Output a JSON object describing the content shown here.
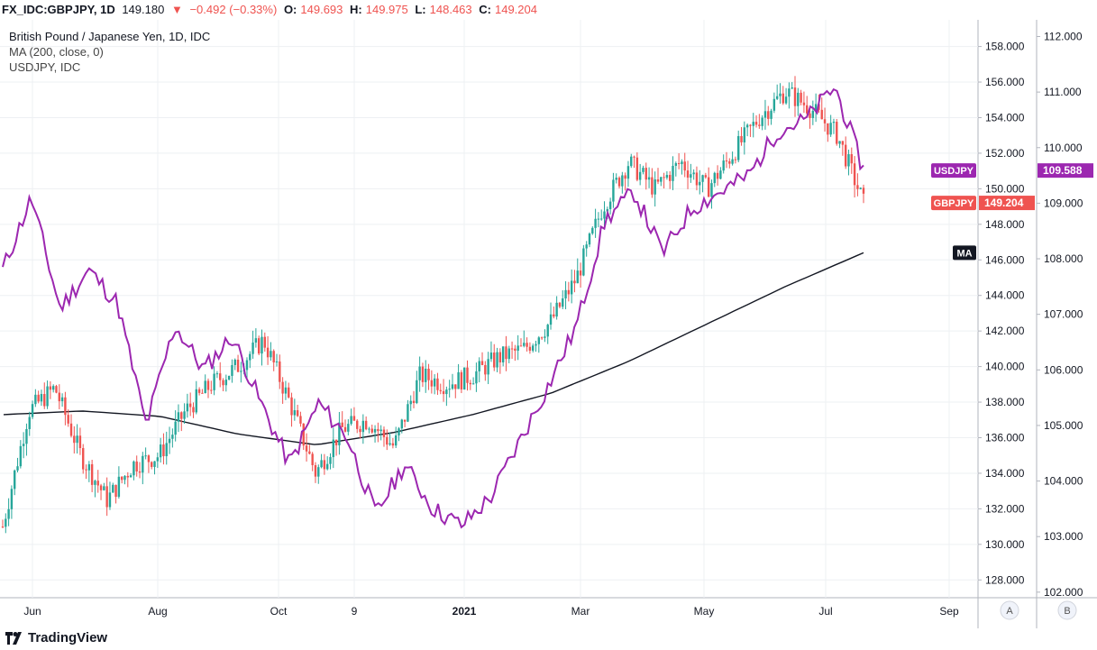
{
  "header": {
    "symbol": "FX_IDC:GBPJPY, 1D",
    "last": "149.180",
    "change_arrow": "▼",
    "change": "−0.492 (−0.33%)",
    "o_label": "O:",
    "o_value": "149.693",
    "h_label": "H:",
    "h_value": "149.975",
    "l_label": "L:",
    "l_value": "148.463",
    "c_label": "C:",
    "c_value": "149.204"
  },
  "legend": {
    "main": "British Pound / Japanese Yen, 1D, IDC",
    "ma": "MA (200, close, 0)",
    "overlay": "USDJPY, IDC"
  },
  "footer": {
    "brand": "TradingView"
  },
  "scale_buttons": {
    "a": "A",
    "b": "B"
  },
  "colors": {
    "up": "#26a69a",
    "down": "#ef5350",
    "usdjpy": "#9c27b0",
    "ma": "#131722",
    "grid": "#eef0f3"
  },
  "chart_data": {
    "type": "line",
    "x_tick_labels": [
      "Jun",
      "Aug",
      "Oct",
      "9",
      "2021",
      "Mar",
      "May",
      "Jul",
      "Sep"
    ],
    "left_axis": null,
    "right_axis_gbpjpy": {
      "ticks": [
        "158.000",
        "156.000",
        "154.000",
        "152.000",
        "150.000",
        "148.000",
        "146.000",
        "144.000",
        "142.000",
        "140.000",
        "138.000",
        "136.000",
        "134.000",
        "132.000",
        "130.000",
        "128.000"
      ],
      "ylim": [
        127,
        159.5
      ]
    },
    "right_axis_usdjpy": {
      "ticks": [
        "112.000",
        "111.000",
        "110.000",
        "109.000",
        "108.000",
        "107.000",
        "106.000",
        "105.000",
        "104.000",
        "103.000",
        "102.000"
      ],
      "ylim": [
        101.9,
        112.3
      ]
    },
    "series": [
      {
        "name": "GBPJPY",
        "kind": "candlestick-close",
        "points": [
          [
            "Jun 2020",
            131.0
          ],
          [
            "Jun 2020",
            137.5
          ],
          [
            "Jun 2020",
            138.8
          ],
          [
            "Jun 2020",
            135.0
          ],
          [
            "Jul 2020",
            132.5
          ],
          [
            "Jul 2020",
            134.5
          ],
          [
            "Jul 2020",
            135.0
          ],
          [
            "Jul 2020",
            137.5
          ],
          [
            "Aug 2020",
            139.0
          ],
          [
            "Aug 2020",
            140.0
          ],
          [
            "Aug 2020",
            141.5
          ],
          [
            "Sep 2020",
            138.0
          ],
          [
            "Sep 2020",
            134.0
          ],
          [
            "Sep 2020",
            136.5
          ],
          [
            "Oct 2020",
            137.0
          ],
          [
            "Oct 2020",
            135.5
          ],
          [
            "Nov 2020",
            139.5
          ],
          [
            "Nov 2020",
            139.0
          ],
          [
            "Dec 2020",
            139.5
          ],
          [
            "Dec 2020",
            140.5
          ],
          [
            "Jan 2021",
            141.0
          ],
          [
            "Jan 2021",
            142.5
          ],
          [
            "Feb 2021",
            145.0
          ],
          [
            "Feb 2021",
            149.0
          ],
          [
            "Mar 2021",
            151.5
          ],
          [
            "Mar 2021",
            150.0
          ],
          [
            "Apr 2021",
            151.5
          ],
          [
            "Apr 2021",
            150.0
          ],
          [
            "May 2021",
            152.0
          ],
          [
            "May 2021",
            154.0
          ],
          [
            "Jun 2021",
            155.5
          ],
          [
            "Jun 2021",
            154.5
          ],
          [
            "Jul 2021",
            153.0
          ],
          [
            "Jul 2021",
            149.2
          ]
        ]
      },
      {
        "name": "USDJPY",
        "points": [
          [
            "Jun 2020",
            107.8
          ],
          [
            "Jun 2020",
            109.1
          ],
          [
            "Jun 2020",
            107.1
          ],
          [
            "Jul 2020",
            107.8
          ],
          [
            "Jul 2020",
            107.2
          ],
          [
            "Jul 2020",
            105.0
          ],
          [
            "Aug 2020",
            106.8
          ],
          [
            "Aug 2020",
            106.0
          ],
          [
            "Aug 2020",
            106.6
          ],
          [
            "Sep 2020",
            105.4
          ],
          [
            "Sep 2020",
            104.3
          ],
          [
            "Oct 2020",
            105.4
          ],
          [
            "Oct 2020",
            104.8
          ],
          [
            "Nov 2020",
            103.4
          ],
          [
            "Nov 2020",
            104.3
          ],
          [
            "Dec 2020",
            103.5
          ],
          [
            "Dec 2020",
            103.2
          ],
          [
            "Jan 2021",
            103.7
          ],
          [
            "Jan 2021",
            104.7
          ],
          [
            "Feb 2021",
            105.7
          ],
          [
            "Feb 2021",
            106.8
          ],
          [
            "Mar 2021",
            108.7
          ],
          [
            "Mar 2021",
            109.2
          ],
          [
            "Apr 2021",
            108.1
          ],
          [
            "Apr 2021",
            108.9
          ],
          [
            "May 2021",
            109.2
          ],
          [
            "May 2021",
            109.5
          ],
          [
            "Jun 2021",
            110.3
          ],
          [
            "Jun 2021",
            110.5
          ],
          [
            "Jul 2021",
            111.1
          ],
          [
            "Jul 2021",
            109.6
          ]
        ]
      },
      {
        "name": "MA",
        "points": [
          [
            "Jun 2020",
            137.3
          ],
          [
            "Aug 2020",
            137.5
          ],
          [
            "Sep 2020",
            137.2
          ],
          [
            "Oct 2020",
            136.2
          ],
          [
            "Nov 2020",
            135.6
          ],
          [
            "Dec 2020",
            136.3
          ],
          [
            "Jan 2021",
            137.3
          ],
          [
            "Feb 2021",
            138.5
          ],
          [
            "Mar 2021",
            140.3
          ],
          [
            "Apr 2021",
            142.4
          ],
          [
            "May 2021",
            144.5
          ],
          [
            "Jun 2021",
            146.4
          ]
        ]
      }
    ],
    "price_tags": [
      {
        "name": "USDJPY",
        "value": "109.588",
        "axis": "usdjpy"
      },
      {
        "name": "GBPJPY",
        "value": "149.204",
        "axis": "gbpjpy"
      },
      {
        "name": "MA",
        "value": "",
        "axis": "gbpjpy"
      }
    ],
    "grid": true
  }
}
